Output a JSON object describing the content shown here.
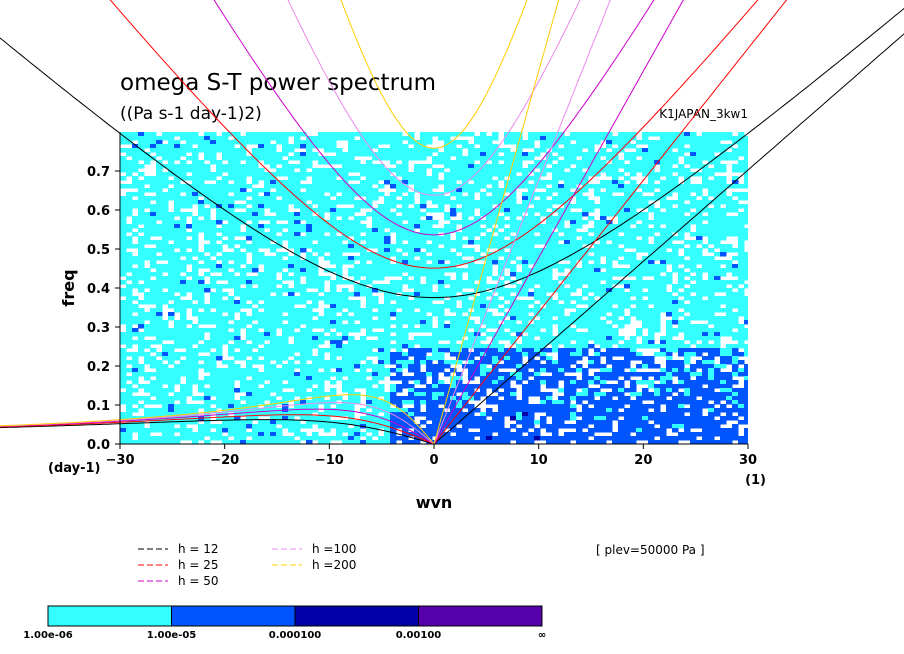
{
  "chart_data": {
    "type": "heatmap",
    "title": "omega S-T power spectrum",
    "subtitle": "((Pa s-1 day-1)2)",
    "run_label": "K1JAPAN_3kw1",
    "xlabel": "wvn",
    "ylabel": "freq",
    "x_unit_label": "(1)",
    "y_unit_label": "(day-1)",
    "xlim": [
      -30,
      30
    ],
    "ylim": [
      0,
      0.8
    ],
    "x_ticks": [
      -30,
      -20,
      -10,
      0,
      10,
      20,
      30
    ],
    "x_tick_labels": [
      "−30",
      "−20",
      "−10",
      "0",
      "10",
      "20",
      "30"
    ],
    "y_ticks": [
      0,
      0.1,
      0.2,
      0.3,
      0.4,
      0.5,
      0.6,
      0.7
    ],
    "y_tick_labels": [
      "0.0",
      "0.1",
      "0.2",
      "0.3",
      "0.4",
      "0.5",
      "0.6",
      "0.7"
    ],
    "plev_label": "[ plev=50000 Pa ]",
    "dispersion_curves_legend": [
      {
        "label": "h = 12",
        "color": "#000000"
      },
      {
        "label": "h = 25",
        "color": "#ff0000"
      },
      {
        "label": "h = 50",
        "color": "#cc00cc"
      },
      {
        "label": "h =100",
        "color": "#ee88ee"
      },
      {
        "label": "h =200",
        "color": "#ffcc00"
      }
    ],
    "colorbar": {
      "levels": [
        "1.00e-06",
        "1.00e-05",
        "0.000100",
        "0.00100",
        "∞"
      ],
      "colors": [
        "#33ffff",
        "#0055ff",
        "#0000aa",
        "#5500aa"
      ]
    },
    "heatmap_colors": {
      "level1": "#33ffff",
      "level2": "#0055ff",
      "level3": "#0000aa"
    }
  }
}
